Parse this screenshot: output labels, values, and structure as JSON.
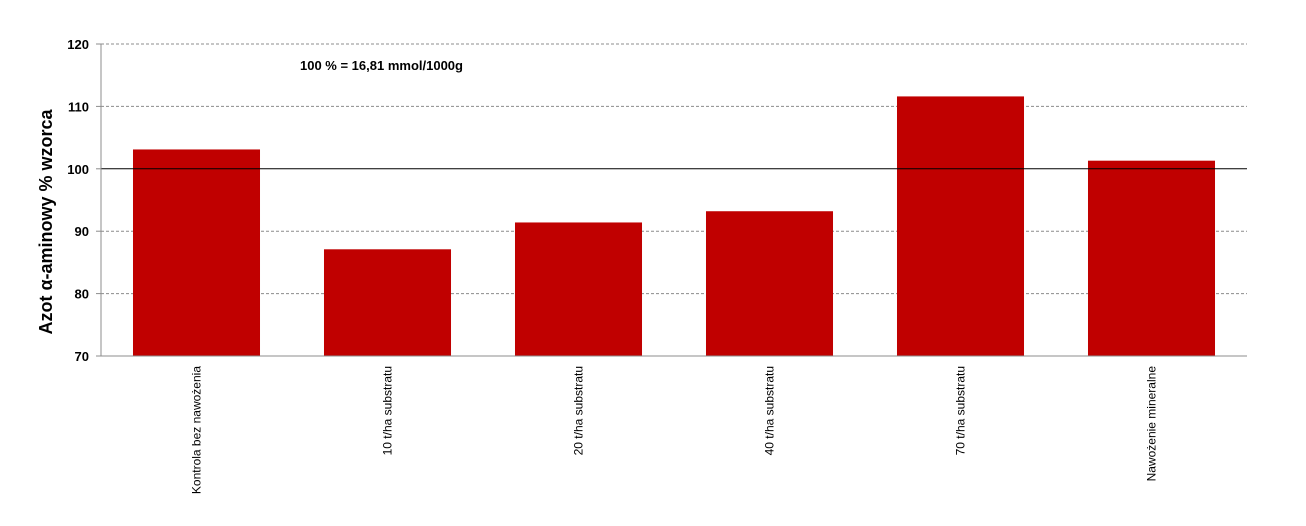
{
  "chart_data": {
    "type": "bar",
    "title": "",
    "xlabel": "",
    "ylabel": "Azot α-aminowy % wzorca",
    "annotation": "100 % = 16,81 mmol/1000g",
    "categories": [
      "Kontrola bez nawożenia",
      "10 t/ha substratu",
      "20 t/ha substratu",
      "40 t/ha substratu",
      "70 t/ha substratu",
      "Nawożenie mineralne"
    ],
    "values": [
      103.1,
      87.1,
      91.4,
      93.2,
      111.6,
      101.3
    ],
    "ylim": [
      70,
      120
    ],
    "yticks": [
      70,
      80,
      90,
      100,
      110,
      120
    ],
    "reference_line": 100,
    "grid": true,
    "grid_style": "dashed",
    "legend": "none",
    "bar_color": "#c00000"
  }
}
